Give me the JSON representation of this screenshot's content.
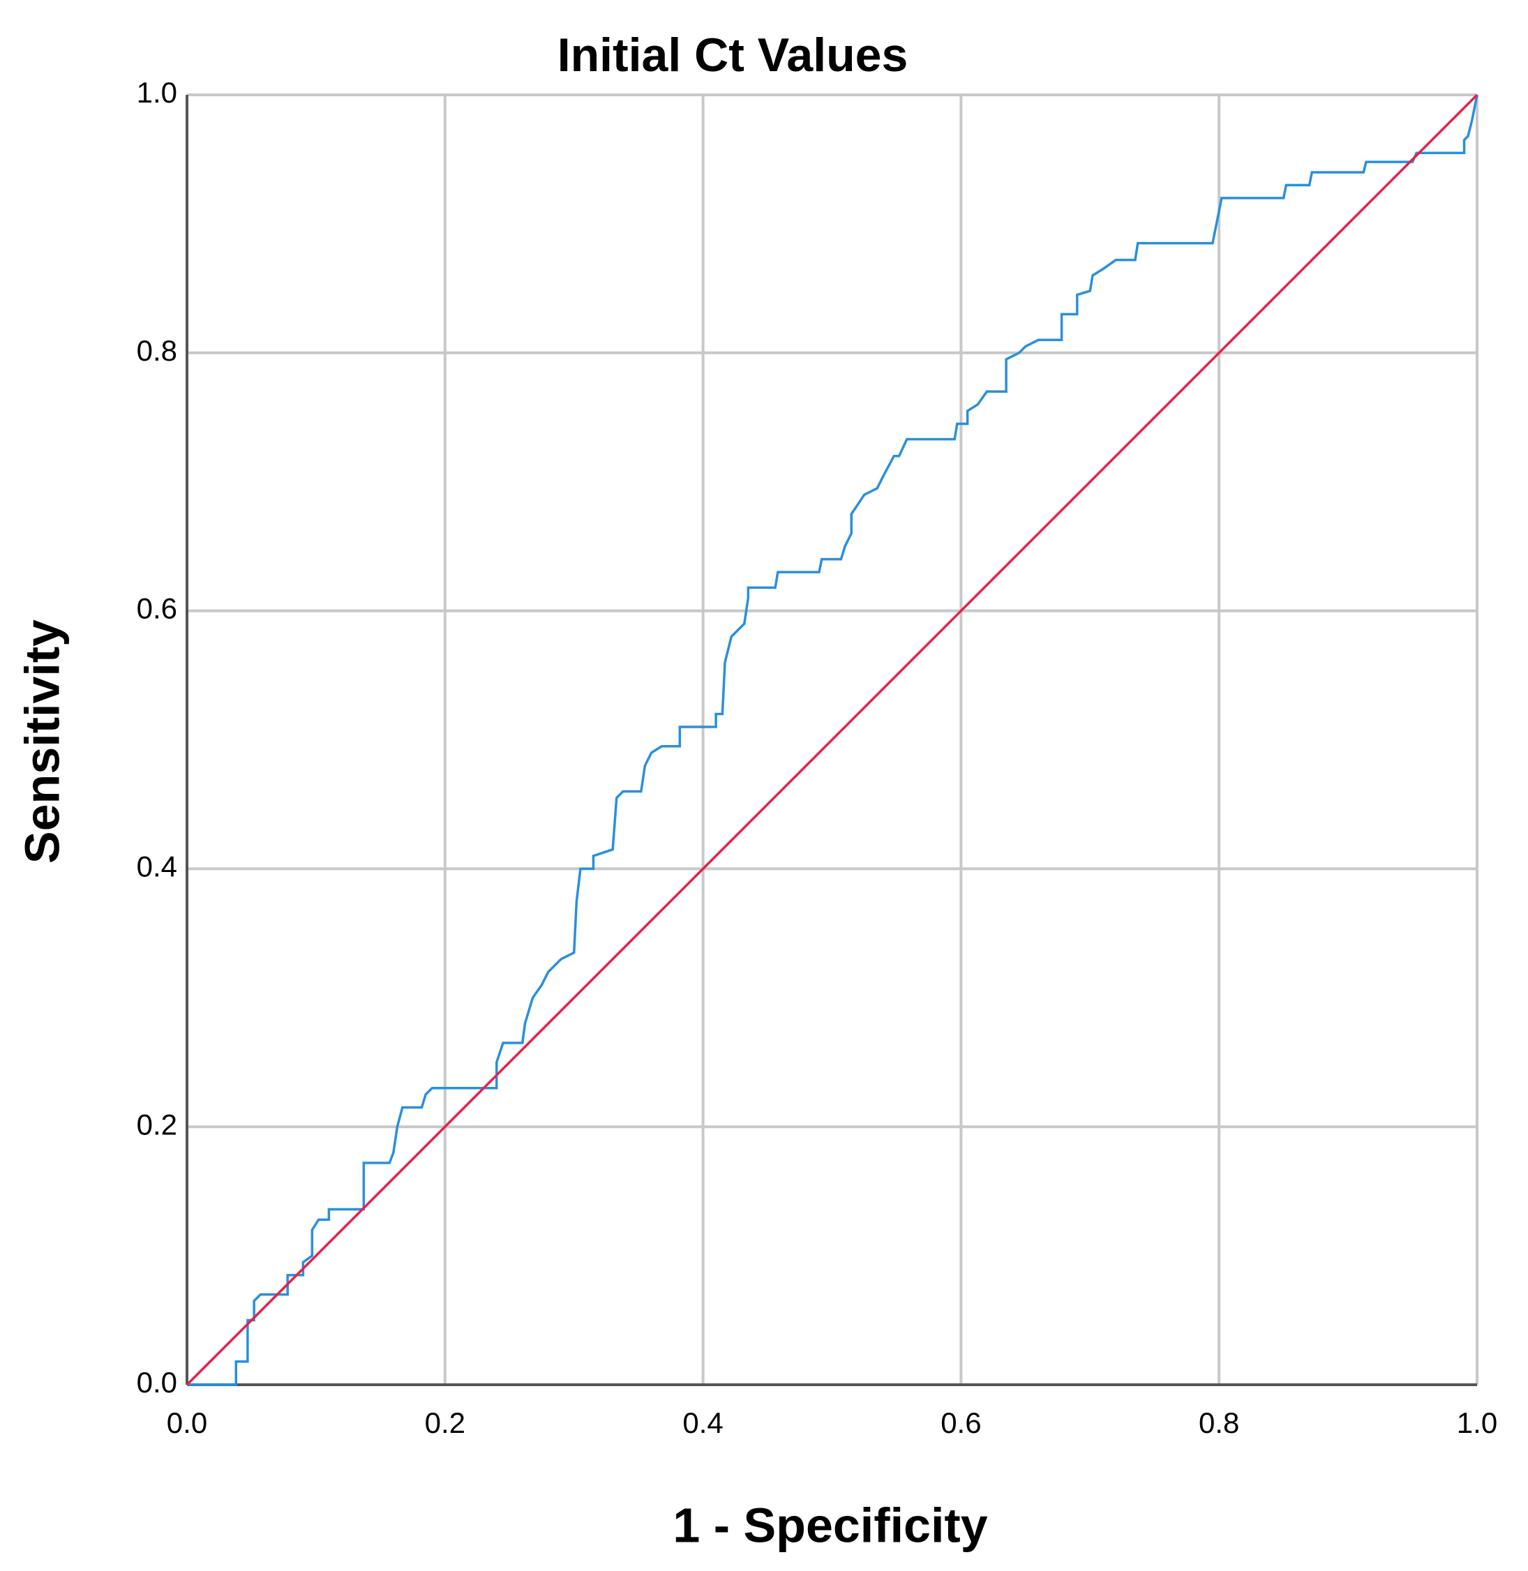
{
  "chart_data": {
    "type": "line",
    "title": "Initial Ct Values",
    "x_label": "1 - Specificity",
    "y_label": "Sensitivity",
    "xlim": [
      0,
      1
    ],
    "ylim": [
      0,
      1
    ],
    "xticks": [
      {
        "value": 0,
        "label": "0.0"
      },
      0.2,
      0.4,
      0.6,
      0.8,
      {
        "value": 1,
        "label": "1.0"
      }
    ],
    "yticks": [
      {
        "value": 0,
        "label": "0.0"
      },
      0.2,
      0.4,
      0.6,
      0.8,
      {
        "value": 1,
        "label": "1.0"
      }
    ],
    "grid": true,
    "series": [
      {
        "color": "#2a8fdc",
        "x": [
          0,
          0.038,
          0.038,
          0.047,
          0.047,
          0.052,
          0.052,
          0.057,
          0.078,
          0.078,
          0.09,
          0.09,
          0.097,
          0.097,
          0.102,
          0.11,
          0.11,
          0.137,
          0.137,
          0.157,
          0.16,
          0.163,
          0.167,
          0.182,
          0.185,
          0.19,
          0.24,
          0.24,
          0.245,
          0.26,
          0.262,
          0.268,
          0.275,
          0.28,
          0.29,
          0.3,
          0.302,
          0.305,
          0.315,
          0.315,
          0.33,
          0.333,
          0.338,
          0.352,
          0.355,
          0.36,
          0.368,
          0.382,
          0.382,
          0.41,
          0.41,
          0.415,
          0.417,
          0.422,
          0.432,
          0.435,
          0.435,
          0.456,
          0.458,
          0.49,
          0.492,
          0.507,
          0.51,
          0.515,
          0.515,
          0.525,
          0.535,
          0.54,
          0.548,
          0.552,
          0.558,
          0.595,
          0.597,
          0.605,
          0.605,
          0.613,
          0.62,
          0.635,
          0.635,
          0.645,
          0.65,
          0.66,
          0.678,
          0.678,
          0.69,
          0.69,
          0.7,
          0.702,
          0.71,
          0.72,
          0.735,
          0.737,
          0.795,
          0.8,
          0.802,
          0.85,
          0.852,
          0.87,
          0.872,
          0.912,
          0.914,
          0.95,
          0.953,
          0.99,
          0.99,
          0.993,
          0.996,
          1
        ],
        "values": [
          0,
          0,
          0.018,
          0.018,
          0.05,
          0.05,
          0.065,
          0.07,
          0.07,
          0.085,
          0.085,
          0.095,
          0.1,
          0.12,
          0.128,
          0.128,
          0.136,
          0.136,
          0.172,
          0.172,
          0.18,
          0.2,
          0.215,
          0.215,
          0.225,
          0.23,
          0.23,
          0.25,
          0.265,
          0.265,
          0.28,
          0.3,
          0.31,
          0.32,
          0.33,
          0.335,
          0.375,
          0.4,
          0.4,
          0.41,
          0.415,
          0.455,
          0.46,
          0.46,
          0.48,
          0.49,
          0.495,
          0.495,
          0.51,
          0.51,
          0.52,
          0.52,
          0.56,
          0.58,
          0.59,
          0.61,
          0.618,
          0.618,
          0.63,
          0.63,
          0.64,
          0.64,
          0.65,
          0.66,
          0.675,
          0.69,
          0.695,
          0.705,
          0.72,
          0.72,
          0.733,
          0.733,
          0.745,
          0.745,
          0.755,
          0.76,
          0.77,
          0.77,
          0.795,
          0.8,
          0.805,
          0.81,
          0.81,
          0.83,
          0.83,
          0.845,
          0.848,
          0.86,
          0.865,
          0.872,
          0.872,
          0.885,
          0.885,
          0.91,
          0.92,
          0.92,
          0.93,
          0.93,
          0.94,
          0.94,
          0.948,
          0.948,
          0.955,
          0.955,
          0.965,
          0.968,
          0.98,
          1
        ]
      },
      {
        "color": "#e8204a",
        "x": [
          0,
          1
        ],
        "values": [
          0,
          1
        ]
      }
    ]
  }
}
